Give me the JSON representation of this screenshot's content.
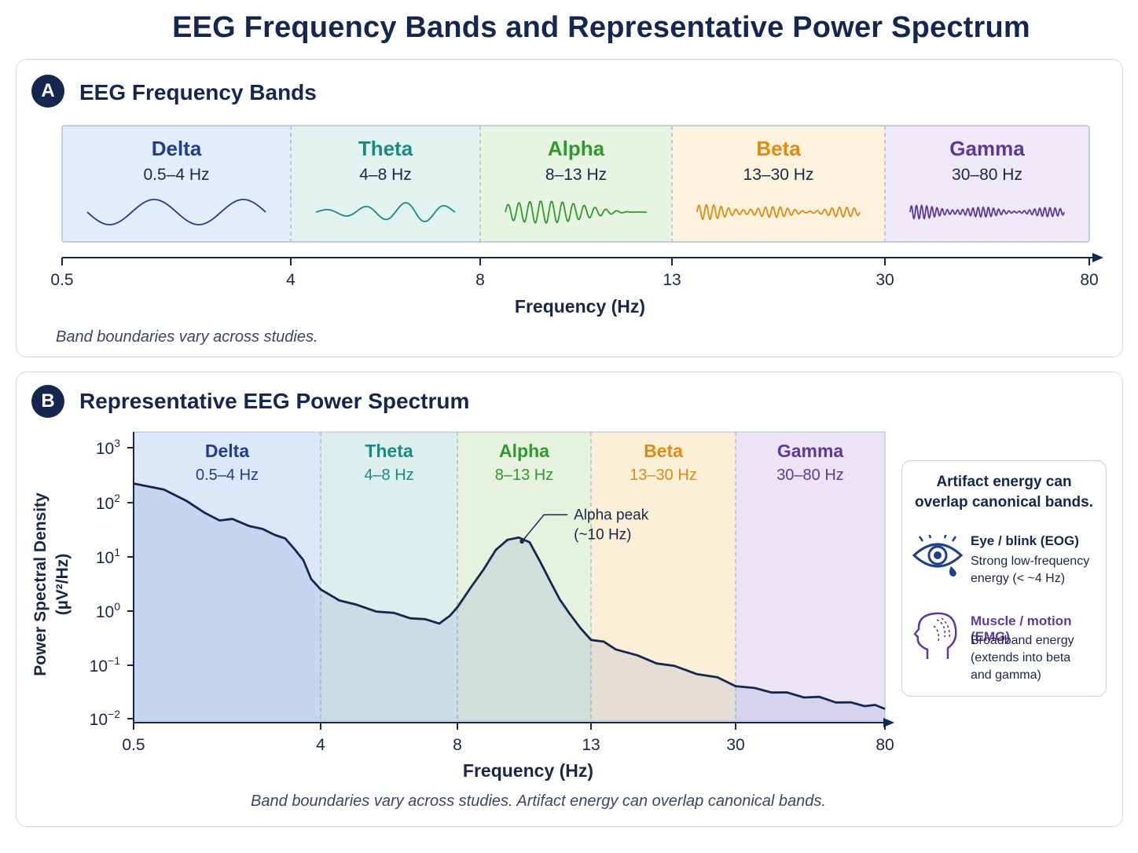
{
  "title": "EEG Frequency Bands and Representative Power Spectrum",
  "panel_a": {
    "badge": "A",
    "title": "EEG Frequency Bands",
    "axis_label": "Frequency (Hz)",
    "note": "Band boundaries vary across studies."
  },
  "panel_b": {
    "badge": "B",
    "title": "Representative EEG Power Spectrum",
    "note": "Band boundaries vary across studies. Artifact energy can overlap canonical bands."
  },
  "artifacts": {
    "title_line1": "Artifact energy can",
    "title_line2": "overlap canonical bands.",
    "eog": {
      "icon": "eye-blink-icon",
      "label": "Eye / blink (EOG)",
      "desc_line1": "Strong low-frequency",
      "desc_line2": "energy (< ~4 Hz)"
    },
    "emg": {
      "icon": "head-muscle-icon",
      "label": "Muscle / motion (EMG)",
      "desc_line1": "Broadband energy",
      "desc_line2": "(extends into beta",
      "desc_line3": "and gamma)"
    }
  },
  "chart_data": [
    {
      "type": "band-diagram",
      "bands": [
        {
          "name": "Delta",
          "range": "0.5–4 Hz",
          "low": 0.5,
          "high": 4,
          "color": "#1f3e8c",
          "fill": "#e3ecfa"
        },
        {
          "name": "Theta",
          "range": "4–8 Hz",
          "low": 4,
          "high": 8,
          "color": "#1b8a80",
          "fill": "#e2f2ee"
        },
        {
          "name": "Alpha",
          "range": "8–13 Hz",
          "low": 8,
          "high": 13,
          "color": "#2e9a2e",
          "fill": "#e8f4e2"
        },
        {
          "name": "Beta",
          "range": "13–30 Hz",
          "low": 13,
          "high": 30,
          "color": "#e08a12",
          "fill": "#fdf2de"
        },
        {
          "name": "Gamma",
          "range": "30–80 Hz",
          "low": 30,
          "high": 80,
          "color": "#5b3a9a",
          "fill": "#efe8f7"
        }
      ],
      "x_ticks": [
        "0.5",
        "4",
        "8",
        "13",
        "30",
        "80"
      ],
      "xlabel": "Frequency (Hz)"
    },
    {
      "type": "line",
      "xlabel": "Frequency (Hz)",
      "ylabel_line1": "Power Spectral Density",
      "ylabel_line2": "(µV²/Hz)",
      "y_scale": "log",
      "ylim": [
        0.01,
        1000
      ],
      "y_ticks": [
        {
          "base": "10",
          "exp": "3"
        },
        {
          "base": "10",
          "exp": "2"
        },
        {
          "base": "10",
          "exp": "1"
        },
        {
          "base": "10",
          "exp": "0"
        },
        {
          "base": "10",
          "exp": "−1"
        },
        {
          "base": "10",
          "exp": "−2"
        }
      ],
      "x_ticks": [
        "0.5",
        "4",
        "8",
        "13",
        "30",
        "80"
      ],
      "annotation": {
        "line1": "Alpha peak",
        "line2": "(~10 Hz)",
        "x": 10,
        "y": 22
      },
      "series": [
        {
          "color": "#16274f",
          "points": [
            [
              0.5,
              230
            ],
            [
              0.7,
              160
            ],
            [
              0.9,
              110
            ],
            [
              1.1,
              60
            ],
            [
              1.3,
              48
            ],
            [
              1.5,
              46
            ],
            [
              1.8,
              38
            ],
            [
              2.1,
              30
            ],
            [
              2.4,
              26
            ],
            [
              2.7,
              20
            ],
            [
              3.0,
              14
            ],
            [
              3.3,
              8
            ],
            [
              3.6,
              4
            ],
            [
              4.0,
              2.3
            ],
            [
              4.4,
              1.6
            ],
            [
              4.8,
              1.2
            ],
            [
              5.3,
              1.0
            ],
            [
              5.8,
              0.85
            ],
            [
              6.3,
              0.75
            ],
            [
              6.8,
              0.65
            ],
            [
              7.3,
              0.6
            ],
            [
              7.7,
              0.75
            ],
            [
              8.0,
              1.2
            ],
            [
              8.4,
              2.5
            ],
            [
              8.8,
              6
            ],
            [
              9.2,
              13
            ],
            [
              9.6,
              20
            ],
            [
              10.0,
              22
            ],
            [
              10.4,
              18
            ],
            [
              10.8,
              8
            ],
            [
              11.2,
              3.5
            ],
            [
              11.6,
              1.6
            ],
            [
              12.0,
              0.9
            ],
            [
              12.5,
              0.45
            ],
            [
              13.0,
              0.3
            ],
            [
              14,
              0.25
            ],
            [
              15,
              0.2
            ],
            [
              17,
              0.14
            ],
            [
              19,
              0.11
            ],
            [
              21,
              0.09
            ],
            [
              24,
              0.07
            ],
            [
              27,
              0.055
            ],
            [
              30,
              0.042
            ],
            [
              34,
              0.035
            ],
            [
              38,
              0.032
            ],
            [
              42,
              0.029
            ],
            [
              47,
              0.026
            ],
            [
              52,
              0.024
            ],
            [
              58,
              0.021
            ],
            [
              64,
              0.019
            ],
            [
              70,
              0.018
            ],
            [
              75,
              0.017
            ],
            [
              80,
              0.016
            ]
          ]
        }
      ]
    }
  ]
}
